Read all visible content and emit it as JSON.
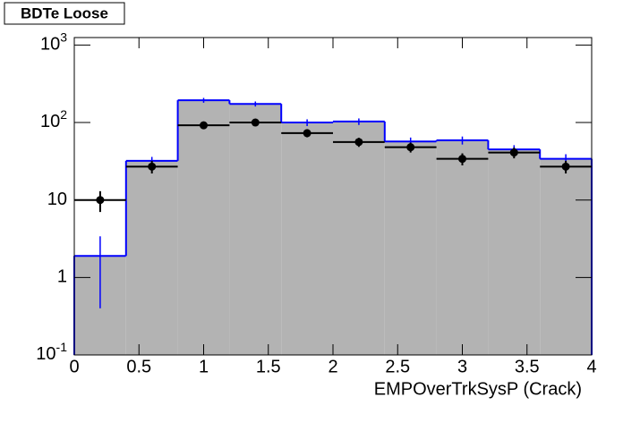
{
  "chart_data": {
    "type": "histogram",
    "title": "BDTe Loose",
    "xlabel": "EMPOverTrkSysP (Crack)",
    "bins": [
      0,
      0.4,
      0.8,
      1.2,
      1.6,
      2.0,
      2.4,
      2.8,
      3.2,
      3.6,
      4.0
    ],
    "series": [
      {
        "style": "hist",
        "color": "#0000ff",
        "fill": "#b3b3b3",
        "values": [
          1.9,
          32,
          194,
          174,
          100,
          103,
          57,
          59,
          45,
          34
        ],
        "errors": [
          1.5,
          4,
          14,
          13,
          10,
          10,
          7,
          7,
          6,
          5
        ]
      },
      {
        "style": "points",
        "color": "#000000",
        "values": [
          10,
          27,
          92,
          100,
          73,
          56,
          48,
          34,
          41,
          27
        ],
        "errors": [
          3,
          5,
          10,
          10,
          8.5,
          7.5,
          7,
          6,
          6.5,
          5
        ]
      }
    ],
    "xlim": [
      0,
      4
    ],
    "xticks": [
      0,
      0.5,
      1,
      1.5,
      2,
      2.5,
      3,
      3.5,
      4
    ],
    "ylim": [
      0.1,
      1250
    ],
    "log_y": true,
    "yticks": [
      {
        "value": 0.1,
        "label": "10",
        "exponent": "-1"
      },
      1,
      10,
      {
        "value": 100,
        "label": "10",
        "exponent": "2"
      },
      {
        "value": 1000,
        "label": "10",
        "exponent": "3"
      }
    ]
  }
}
